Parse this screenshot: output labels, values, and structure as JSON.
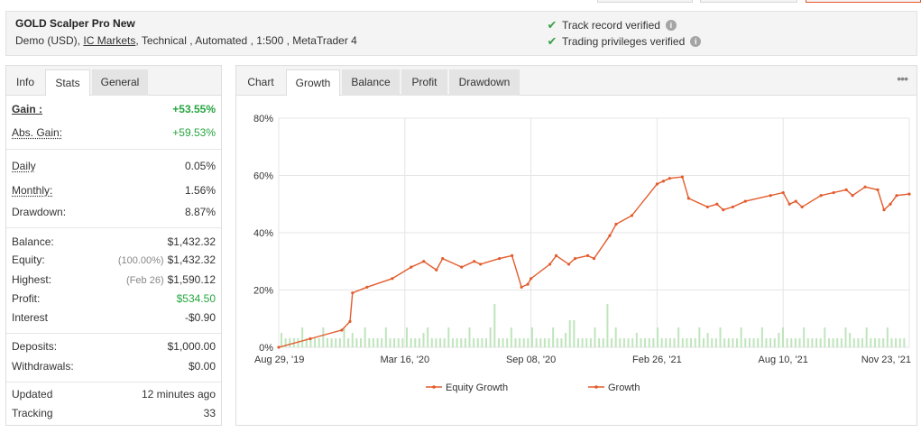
{
  "header": {
    "system_name": "GOLD Scalper Pro New",
    "info_prefix": "Demo (USD),",
    "broker": "IC Markets",
    "info_suffix": ", Technical , Automated , 1:500 , MetaTrader 4",
    "track_record": "Track record verified",
    "trading_privileges": "Trading privileges verified",
    "info_icon_glyph": "i",
    "check_glyph": "✔"
  },
  "left_tabs": [
    "Info",
    "Stats",
    "General"
  ],
  "stats": {
    "gain": {
      "label": "Gain :",
      "value": "+53.55%"
    },
    "abs_gain": {
      "label": "Abs. Gain:",
      "value": "+59.53%"
    },
    "daily": {
      "label": "Daily",
      "value": "0.05%"
    },
    "monthly": {
      "label": "Monthly:",
      "value": "1.56%"
    },
    "drawdown": {
      "label": "Drawdown:",
      "value": "8.87%"
    },
    "balance": {
      "label": "Balance:",
      "value": "$1,432.32"
    },
    "equity": {
      "label": "Equity:",
      "sub": "(100.00%)",
      "value": "$1,432.32"
    },
    "highest": {
      "label": "Highest:",
      "sub": "(Feb 26)",
      "value": "$1,590.12"
    },
    "profit": {
      "label": "Profit:",
      "value": "$534.50"
    },
    "interest": {
      "label": "Interest",
      "value": "-$0.90"
    },
    "deposits": {
      "label": "Deposits:",
      "value": "$1,000.00"
    },
    "withdrawals": {
      "label": "Withdrawals:",
      "value": "$0.00"
    },
    "updated": {
      "label": "Updated",
      "value": "12 minutes ago"
    },
    "tracking": {
      "label": "Tracking",
      "value": "33"
    }
  },
  "chart_tabs": [
    "Chart",
    "Growth",
    "Balance",
    "Profit",
    "Drawdown"
  ],
  "more_glyph": "•••",
  "colors": {
    "series": "#e25b2c",
    "bars": "#bfe5bc",
    "grid": "#e5e5e5",
    "positive": "#26a540"
  },
  "chart_data": {
    "type": "line",
    "xlabel": "",
    "ylabel": "",
    "ylim": [
      0,
      80
    ],
    "yticks": [
      "0%",
      "20%",
      "40%",
      "60%",
      "80%"
    ],
    "xticks": [
      "Aug 29, '19",
      "Mar 16, '20",
      "Sep 08, '20",
      "Feb 26, '21",
      "Aug 10, '21",
      "Nov 23, '21"
    ],
    "grid": true,
    "legend_position": "bottom",
    "series": [
      {
        "name": "Equity Growth",
        "x": [
          0,
          0.05,
          0.1,
          0.113,
          0.117,
          0.14,
          0.18,
          0.21,
          0.23,
          0.25,
          0.26,
          0.29,
          0.31,
          0.32,
          0.35,
          0.37,
          0.385,
          0.395,
          0.4,
          0.43,
          0.44,
          0.46,
          0.47,
          0.49,
          0.5,
          0.525,
          0.535,
          0.56,
          0.6,
          0.61,
          0.62,
          0.64,
          0.65,
          0.68,
          0.695,
          0.705,
          0.72,
          0.74,
          0.78,
          0.8,
          0.81,
          0.82,
          0.83,
          0.86,
          0.88,
          0.9,
          0.91,
          0.93,
          0.95,
          0.96,
          0.97,
          0.98,
          1.0
        ],
        "values": [
          0,
          3,
          6,
          9,
          19,
          21,
          24,
          28,
          30,
          27,
          31,
          28,
          30,
          29,
          31,
          32,
          21,
          22,
          24,
          29,
          32,
          29,
          31,
          32,
          31,
          39,
          43,
          46,
          57,
          58,
          59,
          59.5,
          52,
          49,
          50,
          48,
          49,
          51,
          53,
          54,
          50,
          51,
          49,
          53,
          54,
          55,
          53,
          56,
          55,
          48,
          50,
          53,
          53.5
        ]
      },
      {
        "name": "Growth",
        "x": [
          0,
          0.05,
          0.1,
          0.113,
          0.117,
          0.14,
          0.18,
          0.21,
          0.23,
          0.25,
          0.26,
          0.29,
          0.31,
          0.32,
          0.35,
          0.37,
          0.385,
          0.395,
          0.4,
          0.43,
          0.44,
          0.46,
          0.47,
          0.49,
          0.5,
          0.525,
          0.535,
          0.56,
          0.6,
          0.61,
          0.62,
          0.64,
          0.65,
          0.68,
          0.695,
          0.705,
          0.72,
          0.74,
          0.78,
          0.8,
          0.81,
          0.82,
          0.83,
          0.86,
          0.88,
          0.9,
          0.91,
          0.93,
          0.95,
          0.96,
          0.97,
          0.98,
          1.0
        ],
        "values": [
          0,
          3,
          6,
          9,
          19,
          21,
          24,
          28,
          30,
          27,
          31,
          28,
          30,
          29,
          31,
          32,
          21,
          22,
          24,
          29,
          32,
          29,
          31,
          32,
          31,
          39,
          43,
          46,
          57,
          58,
          59,
          59.5,
          52,
          49,
          50,
          48,
          49,
          51,
          53,
          54,
          50,
          51,
          49,
          53,
          54,
          55,
          53,
          56,
          55,
          48,
          50,
          53,
          53.5
        ]
      }
    ]
  }
}
